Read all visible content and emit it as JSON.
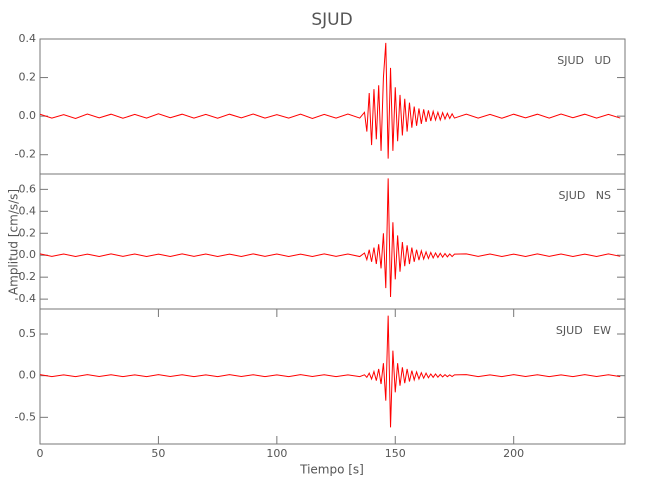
{
  "title": "SJUD",
  "xlabel": "Tiempo [s]",
  "ylabel": "Amplitud [cm/s/s]",
  "chart_data": [
    {
      "type": "line",
      "label": "SJUD   UD",
      "color": "#ff0000",
      "xlim": [
        0,
        247
      ],
      "ylim": [
        -0.3,
        0.4
      ],
      "yticks": [
        0.4,
        0.2,
        {
          "value": 0,
          "label": "0.0"
        },
        -0.2
      ],
      "x": [
        0,
        5,
        10,
        15,
        20,
        25,
        30,
        35,
        40,
        45,
        50,
        55,
        60,
        65,
        70,
        75,
        80,
        85,
        90,
        95,
        100,
        105,
        110,
        115,
        120,
        125,
        130,
        135,
        137,
        138,
        139,
        140,
        141,
        142,
        143,
        144,
        145,
        146,
        147,
        148,
        149,
        150,
        151,
        152,
        153,
        154,
        155,
        156,
        157,
        158,
        159,
        160,
        161,
        162,
        163,
        164,
        165,
        166,
        167,
        168,
        169,
        170,
        171,
        172,
        173,
        174,
        175,
        180,
        185,
        190,
        195,
        200,
        205,
        210,
        215,
        220,
        225,
        230,
        235,
        240,
        245
      ],
      "values": [
        0.01,
        -0.01,
        0.008,
        -0.012,
        0.011,
        -0.009,
        0.01,
        -0.011,
        0.009,
        -0.01,
        0.012,
        -0.008,
        0.01,
        -0.01,
        0.009,
        -0.011,
        0.01,
        -0.009,
        0.011,
        -0.01,
        0.008,
        -0.01,
        0.01,
        -0.012,
        0.009,
        -0.01,
        0.011,
        -0.01,
        0.02,
        -0.08,
        0.12,
        -0.15,
        0.14,
        -0.12,
        0.16,
        -0.18,
        0.2,
        0.38,
        -0.22,
        0.25,
        -0.18,
        0.15,
        -0.13,
        0.11,
        -0.1,
        0.09,
        -0.08,
        0.07,
        -0.06,
        0.05,
        -0.05,
        0.04,
        -0.04,
        0.035,
        -0.03,
        0.03,
        -0.025,
        0.025,
        -0.02,
        0.02,
        -0.02,
        0.018,
        -0.015,
        0.015,
        -0.012,
        0.012,
        -0.01,
        0.01,
        -0.01,
        0.009,
        -0.011,
        0.01,
        -0.009,
        0.01,
        -0.01,
        0.011,
        -0.008,
        0.01,
        -0.01,
        0.009,
        -0.01
      ]
    },
    {
      "type": "line",
      "label": "SJUD   NS",
      "color": "#ff0000",
      "xlim": [
        0,
        247
      ],
      "ylim": [
        -0.49,
        0.74
      ],
      "yticks": [
        0.6,
        0.4,
        0.2,
        {
          "value": 0,
          "label": "0.0"
        },
        -0.2,
        -0.4
      ],
      "x": [
        0,
        5,
        10,
        15,
        20,
        25,
        30,
        35,
        40,
        45,
        50,
        55,
        60,
        65,
        70,
        75,
        80,
        85,
        90,
        95,
        100,
        105,
        110,
        115,
        120,
        125,
        130,
        135,
        137,
        138,
        139,
        140,
        141,
        142,
        143,
        144,
        145,
        146,
        147,
        148,
        149,
        150,
        151,
        152,
        153,
        154,
        155,
        156,
        157,
        158,
        159,
        160,
        161,
        162,
        163,
        164,
        165,
        166,
        167,
        168,
        169,
        170,
        171,
        172,
        173,
        174,
        175,
        180,
        185,
        190,
        195,
        200,
        205,
        210,
        215,
        220,
        225,
        230,
        235,
        240,
        245
      ],
      "values": [
        0.012,
        -0.01,
        0.011,
        -0.012,
        0.01,
        -0.011,
        0.012,
        -0.01,
        0.011,
        -0.012,
        0.01,
        -0.011,
        0.012,
        -0.01,
        0.011,
        -0.012,
        0.01,
        -0.011,
        0.012,
        -0.01,
        0.011,
        -0.012,
        0.01,
        -0.011,
        0.012,
        -0.01,
        0.011,
        -0.012,
        0.02,
        -0.04,
        0.05,
        -0.06,
        0.07,
        -0.08,
        0.1,
        -0.12,
        0.2,
        -0.3,
        0.7,
        -0.38,
        0.3,
        -0.22,
        0.18,
        -0.15,
        0.12,
        -0.1,
        0.09,
        -0.08,
        0.07,
        -0.06,
        0.05,
        -0.045,
        0.04,
        -0.035,
        0.03,
        -0.03,
        0.025,
        -0.025,
        0.02,
        -0.02,
        0.018,
        -0.018,
        0.015,
        -0.015,
        0.012,
        -0.012,
        0.01,
        0.012,
        -0.01,
        0.011,
        -0.012,
        0.01,
        -0.011,
        0.012,
        -0.01,
        0.011,
        -0.012,
        0.01,
        -0.011,
        0.012,
        -0.01
      ]
    },
    {
      "type": "line",
      "label": "SJUD   EW",
      "color": "#ff0000",
      "xlim": [
        0,
        247
      ],
      "ylim": [
        -0.82,
        0.8
      ],
      "yticks": [
        0.5,
        {
          "value": 0,
          "label": "0.0"
        },
        -0.5
      ],
      "xticks": [
        0,
        50,
        100,
        150,
        200
      ],
      "x": [
        0,
        5,
        10,
        15,
        20,
        25,
        30,
        35,
        40,
        45,
        50,
        55,
        60,
        65,
        70,
        75,
        80,
        85,
        90,
        95,
        100,
        105,
        110,
        115,
        120,
        125,
        130,
        135,
        137,
        138,
        139,
        140,
        141,
        142,
        143,
        144,
        145,
        146,
        147,
        148,
        149,
        150,
        151,
        152,
        153,
        154,
        155,
        156,
        157,
        158,
        159,
        160,
        161,
        162,
        163,
        164,
        165,
        166,
        167,
        168,
        169,
        170,
        171,
        172,
        173,
        174,
        175,
        180,
        185,
        190,
        195,
        200,
        205,
        210,
        215,
        220,
        225,
        230,
        235,
        240,
        245
      ],
      "values": [
        0.012,
        -0.012,
        0.01,
        -0.011,
        0.012,
        -0.01,
        0.011,
        -0.012,
        0.01,
        -0.011,
        0.012,
        -0.01,
        0.011,
        -0.012,
        0.01,
        -0.011,
        0.012,
        -0.01,
        0.011,
        -0.012,
        0.01,
        -0.011,
        0.012,
        -0.01,
        0.011,
        -0.012,
        0.01,
        -0.011,
        0.01,
        -0.02,
        0.03,
        -0.04,
        0.05,
        -0.06,
        0.08,
        -0.1,
        0.15,
        -0.3,
        0.72,
        -0.62,
        0.3,
        -0.2,
        0.15,
        -0.12,
        0.1,
        -0.09,
        0.08,
        -0.07,
        0.06,
        -0.05,
        0.045,
        -0.04,
        0.035,
        -0.03,
        0.03,
        -0.025,
        0.02,
        -0.02,
        0.02,
        -0.018,
        0.015,
        -0.015,
        0.012,
        -0.012,
        0.01,
        -0.01,
        0.01,
        0.012,
        -0.012,
        0.01,
        -0.011,
        0.012,
        -0.01,
        0.011,
        -0.012,
        0.01,
        -0.011,
        0.012,
        -0.01,
        0.011,
        -0.012
      ]
    }
  ]
}
